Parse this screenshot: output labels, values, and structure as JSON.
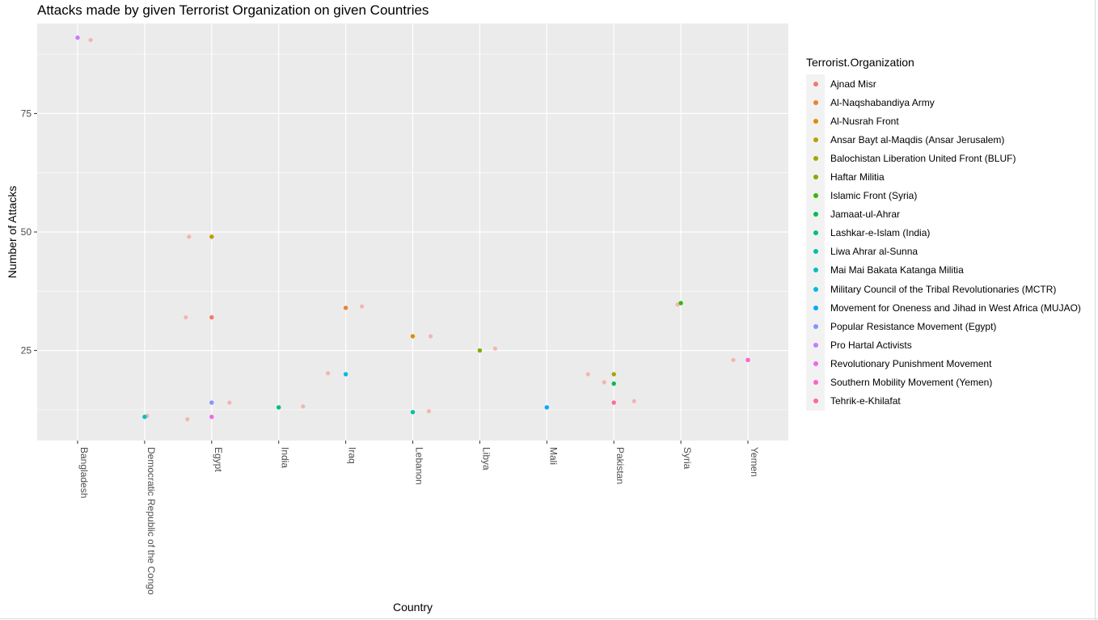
{
  "chart_data": {
    "type": "scatter",
    "title": "Attacks made by given Terrorist Organization on given Countries",
    "xlabel": "Country",
    "ylabel": "Number of Attacks",
    "categories": [
      "Bangladesh",
      "Democratic Republic of the Congo",
      "Egypt",
      "India",
      "Iraq",
      "Lebanon",
      "Libya",
      "Mali",
      "Pakistan",
      "Syria",
      "Yemen"
    ],
    "y_ticks": [
      25,
      50,
      75
    ],
    "ylim": [
      6,
      94
    ],
    "grid": true,
    "legend": {
      "title": "Terrorist.Organization",
      "placement": "right"
    },
    "series": [
      {
        "name": "Ajnad Misr",
        "color": "#F8766D",
        "points": [
          {
            "x": "Egypt",
            "y": 32
          }
        ]
      },
      {
        "name": "Al-Naqshabandiya Army",
        "color": "#EA8331",
        "points": [
          {
            "x": "Iraq",
            "y": 34
          }
        ]
      },
      {
        "name": "Al-Nusrah Front",
        "color": "#D89000",
        "points": [
          {
            "x": "Lebanon",
            "y": 28
          }
        ]
      },
      {
        "name": "Ansar Bayt al-Maqdis (Ansar Jerusalem)",
        "color": "#C09B00",
        "points": [
          {
            "x": "Egypt",
            "y": 49
          }
        ]
      },
      {
        "name": "Balochistan Liberation United Front (BLUF)",
        "color": "#A3A500",
        "points": [
          {
            "x": "Pakistan",
            "y": 20
          }
        ]
      },
      {
        "name": "Haftar Militia",
        "color": "#7CAE00",
        "points": [
          {
            "x": "Libya",
            "y": 25
          }
        ]
      },
      {
        "name": "Islamic Front (Syria)",
        "color": "#39B600",
        "points": [
          {
            "x": "Syria",
            "y": 35
          }
        ]
      },
      {
        "name": "Jamaat-ul-Ahrar",
        "color": "#00BB4E",
        "points": [
          {
            "x": "Pakistan",
            "y": 18
          }
        ]
      },
      {
        "name": "Lashkar-e-Islam (India)",
        "color": "#00BF7D",
        "points": [
          {
            "x": "India",
            "y": 13
          }
        ]
      },
      {
        "name": "Liwa Ahrar al-Sunna",
        "color": "#00C1A3",
        "points": [
          {
            "x": "Lebanon",
            "y": 12
          }
        ]
      },
      {
        "name": "Mai Mai Bakata Katanga Militia",
        "color": "#00BFC4",
        "points": [
          {
            "x": "Democratic Republic of the Congo",
            "y": 11
          }
        ]
      },
      {
        "name": "Military Council of the Tribal Revolutionaries (MCTR)",
        "color": "#00B8E7",
        "points": [
          {
            "x": "Iraq",
            "y": 20
          }
        ]
      },
      {
        "name": "Movement for Oneness and Jihad in West Africa (MUJAO)",
        "color": "#00A9FF",
        "points": [
          {
            "x": "Mali",
            "y": 13
          }
        ]
      },
      {
        "name": "Popular Resistance Movement (Egypt)",
        "color": "#8494FF",
        "points": [
          {
            "x": "Egypt",
            "y": 14
          }
        ]
      },
      {
        "name": "Pro Hartal Activists",
        "color": "#C77CFF",
        "points": [
          {
            "x": "Bangladesh",
            "y": 91
          }
        ]
      },
      {
        "name": "Revolutionary Punishment Movement",
        "color": "#ED68ED",
        "points": [
          {
            "x": "Egypt",
            "y": 11
          }
        ]
      },
      {
        "name": "Southern Mobility Movement (Yemen)",
        "color": "#FF61CC",
        "points": [
          {
            "x": "Yemen",
            "y": 23
          }
        ]
      },
      {
        "name": "Tehrik-e-Khilafat",
        "color": "#FF68A1",
        "points": [
          {
            "x": "Pakistan",
            "y": 14
          }
        ]
      }
    ],
    "faded_points": [
      {
        "x": "Bangladesh",
        "y": 90.5
      },
      {
        "x": "Democratic Republic of the Congo",
        "y": 11.2
      },
      {
        "x": "Egypt",
        "y": 49
      },
      {
        "x": "Egypt",
        "y": 32
      },
      {
        "x": "Egypt",
        "y": 14
      },
      {
        "x": "Egypt",
        "y": 10.5
      },
      {
        "x": "India",
        "y": 13.2
      },
      {
        "x": "Iraq",
        "y": 34.3
      },
      {
        "x": "Iraq",
        "y": 20.2
      },
      {
        "x": "Lebanon",
        "y": 28
      },
      {
        "x": "Lebanon",
        "y": 12.2
      },
      {
        "x": "Libya",
        "y": 25.4
      },
      {
        "x": "Pakistan",
        "y": 20
      },
      {
        "x": "Pakistan",
        "y": 18.3
      },
      {
        "x": "Pakistan",
        "y": 14.3
      },
      {
        "x": "Syria",
        "y": 34.7
      },
      {
        "x": "Yemen",
        "y": 23
      }
    ],
    "faded_color": "#F8766D",
    "panel_color": "#EBEBEB"
  }
}
